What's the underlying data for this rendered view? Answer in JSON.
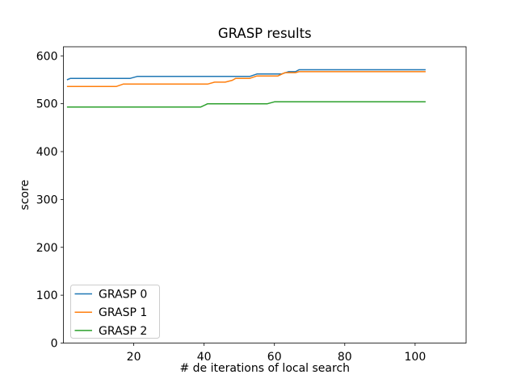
{
  "chart_data": {
    "type": "line",
    "title": "GRASP results",
    "xlabel": "# de iterations of local search",
    "ylabel": "score",
    "xlim": [
      0,
      114.5
    ],
    "ylim": [
      0,
      619
    ],
    "xticks": [
      20,
      40,
      60,
      80,
      100
    ],
    "yticks": [
      0,
      100,
      200,
      300,
      400,
      500,
      600
    ],
    "grid": false,
    "axis_color": "#000000",
    "background": "#ffffff",
    "legend": {
      "location": "lower-left",
      "entries": [
        "GRASP 0",
        "GRASP 1",
        "GRASP 2"
      ],
      "border_color": "#cccccc",
      "background": "#ffffff"
    },
    "series": [
      {
        "name": "GRASP 0",
        "color": "#1f77b4",
        "points": [
          [
            1,
            550
          ],
          [
            2,
            553
          ],
          [
            19,
            553
          ],
          [
            21,
            557
          ],
          [
            53,
            557
          ],
          [
            55,
            562
          ],
          [
            62,
            562
          ],
          [
            64,
            567
          ],
          [
            66,
            567
          ],
          [
            67,
            571
          ],
          [
            103,
            571
          ]
        ]
      },
      {
        "name": "GRASP 1",
        "color": "#ff7f0e",
        "points": [
          [
            1,
            536
          ],
          [
            15,
            536
          ],
          [
            17,
            541
          ],
          [
            41,
            541
          ],
          [
            43,
            545
          ],
          [
            46,
            545
          ],
          [
            48,
            549
          ],
          [
            49,
            553
          ],
          [
            53,
            553
          ],
          [
            55,
            558
          ],
          [
            61,
            558
          ],
          [
            63,
            565
          ],
          [
            66,
            565
          ],
          [
            67,
            567
          ],
          [
            103,
            567
          ]
        ]
      },
      {
        "name": "GRASP 2",
        "color": "#2ca02c",
        "points": [
          [
            1,
            493
          ],
          [
            39,
            493
          ],
          [
            41,
            500
          ],
          [
            58,
            500
          ],
          [
            60,
            504
          ],
          [
            103,
            504
          ]
        ]
      }
    ]
  }
}
